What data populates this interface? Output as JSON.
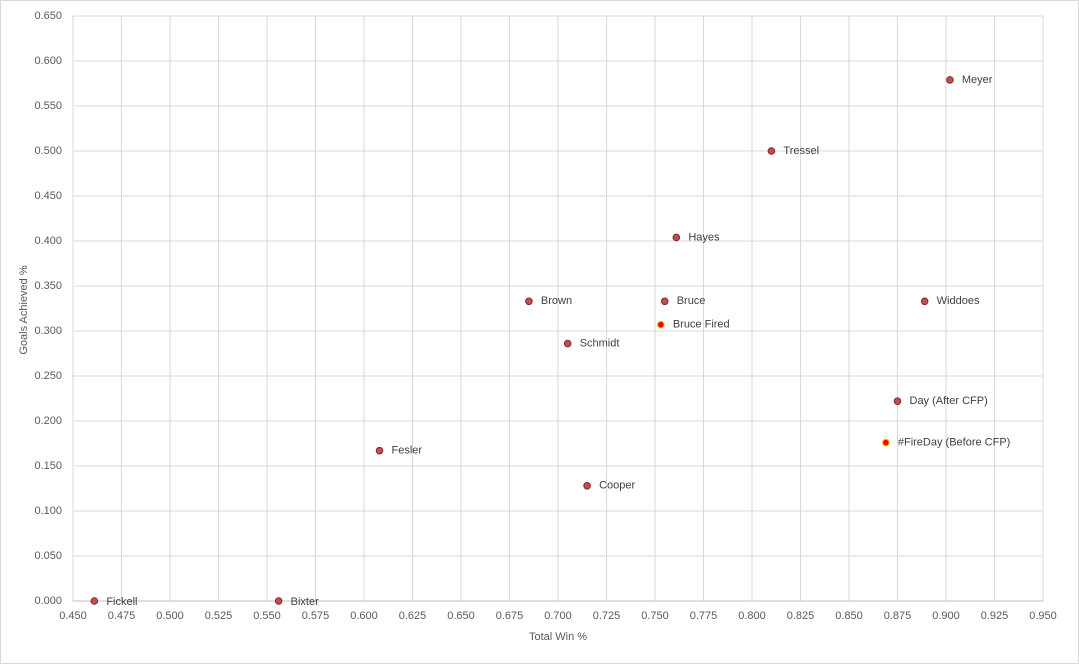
{
  "chart_data": {
    "type": "scatter",
    "x_label": "Total Win %",
    "y_label": "Goals Achieved %",
    "labels": [
      "Fickell",
      "Bixter",
      "Fesler",
      "Cooper",
      "Schmidt",
      "Brown",
      "Bruce",
      "Bruce Fired",
      "Hayes",
      "Tressel",
      "Meyer",
      "Widdoes",
      "Day (After CFP)",
      "#FireDay (Before CFP)"
    ],
    "x": [
      0.461,
      0.556,
      0.608,
      0.715,
      0.705,
      0.685,
      0.755,
      0.753,
      0.761,
      0.81,
      0.902,
      0.889,
      0.875,
      0.869
    ],
    "values": [
      0.0,
      0.0,
      0.167,
      0.128,
      0.286,
      0.333,
      0.333,
      0.307,
      0.404,
      0.5,
      0.579,
      0.333,
      0.222,
      0.176
    ],
    "colors": [
      "#c0504d",
      "#c0504d",
      "#c0504d",
      "#c0504d",
      "#c0504d",
      "#c0504d",
      "#c0504d",
      "#ff0000",
      "#c0504d",
      "#c0504d",
      "#c0504d",
      "#c0504d",
      "#c0504d",
      "#ff0000"
    ],
    "xlim": [
      0.45,
      0.95
    ],
    "ylim": [
      0,
      0.65
    ],
    "xticks": [
      {
        "value": 0.45,
        "label": "0.450"
      },
      {
        "value": 0.475,
        "label": "0.475"
      },
      {
        "value": 0.5,
        "label": "0.500"
      },
      {
        "value": 0.525,
        "label": "0.525"
      },
      {
        "value": 0.55,
        "label": "0.550"
      },
      {
        "value": 0.575,
        "label": "0.575"
      },
      {
        "value": 0.6,
        "label": "0.600"
      },
      {
        "value": 0.625,
        "label": "0.625"
      },
      {
        "value": 0.65,
        "label": "0.650"
      },
      {
        "value": 0.675,
        "label": "0.675"
      },
      {
        "value": 0.7,
        "label": "0.700"
      },
      {
        "value": 0.725,
        "label": "0.725"
      },
      {
        "value": 0.75,
        "label": "0.750"
      },
      {
        "value": 0.775,
        "label": "0.775"
      },
      {
        "value": 0.8,
        "label": "0.800"
      },
      {
        "value": 0.825,
        "label": "0.825"
      },
      {
        "value": 0.85,
        "label": "0.850"
      },
      {
        "value": 0.875,
        "label": "0.875"
      },
      {
        "value": 0.9,
        "label": "0.900"
      },
      {
        "value": 0.925,
        "label": "0.925"
      },
      {
        "value": 0.95,
        "label": "0.950"
      }
    ],
    "yticks": [
      {
        "value": 0,
        "label": "0.000"
      },
      {
        "value": 0.05,
        "label": "0.050"
      },
      {
        "value": 0.1,
        "label": "0.100"
      },
      {
        "value": 0.15,
        "label": "0.150"
      },
      {
        "value": 0.2,
        "label": "0.200"
      },
      {
        "value": 0.25,
        "label": "0.250"
      },
      {
        "value": 0.3,
        "label": "0.300"
      },
      {
        "value": 0.35,
        "label": "0.350"
      },
      {
        "value": 0.4,
        "label": "0.400"
      },
      {
        "value": 0.45,
        "label": "0.450"
      },
      {
        "value": 0.5,
        "label": "0.500"
      },
      {
        "value": 0.55,
        "label": "0.550"
      },
      {
        "value": 0.6,
        "label": "0.600"
      },
      {
        "value": 0.65,
        "label": "0.650"
      }
    ],
    "grid": true
  }
}
